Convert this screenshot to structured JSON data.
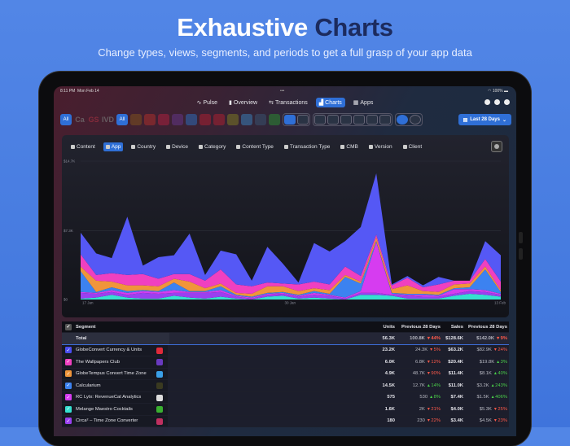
{
  "hero": {
    "title_a": "Exhaustive",
    "title_b": "Charts",
    "subtitle": "Change types, views, segments, and periods to get a full grasp of your app data"
  },
  "status": {
    "time": "8:11 PM",
    "date": "Mon Feb 14",
    "battery": "100%"
  },
  "nav": [
    {
      "label": "Pulse",
      "icon": "pulse-icon"
    },
    {
      "label": "Overview",
      "icon": "bar-chart-icon"
    },
    {
      "label": "Transactions",
      "icon": "transactions-icon"
    },
    {
      "label": "Charts",
      "icon": "chart-icon",
      "active": true
    },
    {
      "label": "Apps",
      "icon": "grid-icon"
    }
  ],
  "toolbar": {
    "all1": "All",
    "stores": [
      "Ca",
      "GS",
      "IVD"
    ],
    "all2": "All",
    "date_range": "Last 28 Days",
    "app_icon_colors": [
      "#8a5a1a",
      "#c0302a",
      "#c02040",
      "#6a3a9a",
      "#2a7ad0",
      "#c02030",
      "#c02030",
      "#8a8a20",
      "#3a90d0",
      "#3a5a7a",
      "#2aa030"
    ]
  },
  "segments": [
    {
      "label": "Content"
    },
    {
      "label": "App",
      "active": true
    },
    {
      "label": "Country"
    },
    {
      "label": "Device"
    },
    {
      "label": "Category"
    },
    {
      "label": "Content Type"
    },
    {
      "label": "Transaction Type"
    },
    {
      "label": "CMB"
    },
    {
      "label": "Version"
    },
    {
      "label": "Client"
    }
  ],
  "chart_data": {
    "type": "area",
    "stacked": true,
    "grid": true,
    "x": [
      "17 Jan",
      "18 Jan",
      "19 Jan",
      "20 Jan",
      "21 Jan",
      "22 Jan",
      "23 Jan",
      "24 Jan",
      "25 Jan",
      "26 Jan",
      "27 Jan",
      "28 Jan",
      "29 Jan",
      "30 Jan",
      "31 Jan",
      "1 Feb",
      "2 Feb",
      "3 Feb",
      "4 Feb",
      "5 Feb",
      "6 Feb",
      "7 Feb",
      "8 Feb",
      "9 Feb",
      "10 Feb",
      "11 Feb",
      "12 Feb",
      "13 Feb"
    ],
    "x_tick_labels": [
      "17 Jan",
      "30 Jan",
      "13 Feb"
    ],
    "y_tick_labels": [
      "$0",
      "$7.3K",
      "$14.7K"
    ],
    "ylim": [
      0,
      14.7
    ],
    "y_unit": "$K",
    "series": [
      {
        "name": "Melange Maestro Cocktails",
        "color": "#35e0d0",
        "values": [
          0.1,
          0.2,
          0.5,
          0.2,
          0.1,
          0.1,
          0.4,
          0.2,
          0.1,
          0.3,
          0.1,
          0,
          0.3,
          0.4,
          0.1,
          0.2,
          0.1,
          0,
          0.5,
          0.5,
          0.4,
          0.1,
          0.1,
          0.1,
          0.4,
          0.6,
          0.5,
          0.3
        ]
      },
      {
        "name": "Circa² – Time Zone Converter",
        "color": "#9a40f0",
        "values": [
          0.6,
          0.4,
          0.3,
          0.3,
          0.6,
          0.5,
          0.3,
          0.5,
          0.6,
          0.5,
          0.2,
          0.1,
          0.2,
          0.2,
          0.2,
          0.3,
          0.3,
          0.1,
          0.2,
          0.2,
          0.1,
          0.3,
          0.2,
          0.2,
          0.2,
          0.3,
          0.3,
          0.2
        ]
      },
      {
        "name": "RC Lytx: RevenueCat Analytics",
        "color": "#d63cf0",
        "values": [
          0.1,
          0.1,
          0.2,
          0.2,
          0.2,
          0.2,
          0.3,
          0.1,
          0.1,
          0.2,
          0.1,
          0.1,
          0.1,
          0.1,
          0.1,
          0.2,
          0.1,
          0.1,
          0.2,
          5.4,
          0.1,
          0.1,
          0.2,
          0.1,
          0.5,
          0.2,
          0.2,
          0.1
        ]
      },
      {
        "name": "Calcularium",
        "color": "#3c82f0",
        "values": [
          2.2,
          0.1,
          0.3,
          0.2,
          0.1,
          0.1,
          0.8,
          0.1,
          0.1,
          0.4,
          0.1,
          0.1,
          0.1,
          0.1,
          0.1,
          0.2,
          0.1,
          2.2,
          0.8,
          0.1,
          0.1,
          0.1,
          0.1,
          0.1,
          0.1,
          0.2,
          2.2,
          0.2
        ]
      },
      {
        "name": "GlobeTempus Convert Time Zone",
        "color": "#f0953a",
        "values": [
          0.5,
          1.2,
          0.6,
          0.6,
          0.5,
          0.5,
          0.4,
          1.0,
          0.3,
          0.3,
          0.2,
          0.3,
          0.7,
          0.6,
          0.4,
          0.3,
          0.4,
          0.2,
          0.2,
          0.4,
          0.4,
          0.9,
          0.3,
          0.3,
          0.4,
          0.4,
          0.3,
          0.2
        ]
      },
      {
        "name": "The Wallpapers Club",
        "color": "#f040c0",
        "values": [
          1.3,
          0.6,
          0.9,
          1.1,
          1.2,
          0.8,
          0.5,
          0.8,
          0.8,
          1.5,
          0.9,
          0.8,
          0.4,
          0.3,
          0.7,
          0.7,
          0.6,
          0.9,
          0.6,
          0.3,
          0.4,
          0.8,
          0.4,
          0.8,
          0.4,
          0.3,
          0.8,
          0.9
        ]
      },
      {
        "name": "GlobeConvert Currency & Units",
        "color": "#5558f5",
        "values": [
          2.3,
          2.3,
          1.6,
          6.2,
          0.9,
          2.3,
          2.0,
          4.3,
          0.6,
          2.0,
          3.2,
          0.6,
          3.8,
          2.1,
          0.2,
          4.1,
          3.5,
          2.7,
          5.2,
          6.5,
          0.1,
          0.2,
          0.2,
          0.8,
          0,
          0,
          1.9,
          2.8
        ]
      }
    ]
  },
  "table": {
    "headers": {
      "segment": "Segment",
      "units": "Units",
      "prev_units": "Previous 28 Days",
      "sales": "Sales",
      "prev_sales": "Previous 28 Days"
    },
    "total": {
      "name": "Total",
      "units": "56.3K",
      "prev_units": "100.8K",
      "units_change": "▾ 44%",
      "sales": "$128.6K",
      "prev_sales": "$142.0K",
      "sales_change": "▾ 9%"
    },
    "rows": [
      {
        "name": "GlobeConvert Currency & Units",
        "color": "#4a4df0",
        "icon_color": "#e02a3a",
        "units": "23.2K",
        "prev_units": "24.3K",
        "units_change": "▾ 5%",
        "units_dir": "down",
        "sales": "$63.2K",
        "prev_sales": "$82.9K",
        "sales_change": "▾ 24%",
        "sales_dir": "down"
      },
      {
        "name": "The Wallpapers Club",
        "color": "#f040c0",
        "icon_color": "#6a3ac0",
        "units": "6.0K",
        "prev_units": "6.8K",
        "units_change": "▾ 12%",
        "units_dir": "down",
        "sales": "$20.4K",
        "prev_sales": "$19.8K",
        "sales_change": "▴ 3%",
        "sales_dir": "up"
      },
      {
        "name": "GlobeTempus Convert Time Zone",
        "color": "#f0953a",
        "icon_color": "#3aa0e8",
        "units": "4.9K",
        "prev_units": "48.7K",
        "units_change": "▾ 90%",
        "units_dir": "down",
        "sales": "$11.4K",
        "prev_sales": "$8.1K",
        "sales_change": "▴ 40%",
        "sales_dir": "up"
      },
      {
        "name": "Calcularium",
        "color": "#3c82f0",
        "icon_color": "#3a3a20",
        "units": "14.5K",
        "prev_units": "12.7K",
        "units_change": "▴ 14%",
        "units_dir": "up",
        "sales": "$11.0K",
        "prev_sales": "$3.2K",
        "sales_change": "▴ 243%",
        "sales_dir": "up"
      },
      {
        "name": "RC Lytx: RevenueCat Analytics",
        "color": "#d63cf0",
        "icon_color": "#dddddd",
        "units": "575",
        "prev_units": "530",
        "units_change": "▴ 8%",
        "units_dir": "up",
        "sales": "$7.4K",
        "prev_sales": "$1.5K",
        "sales_change": "▴ 406%",
        "sales_dir": "up"
      },
      {
        "name": "Melange Maestro Cocktails",
        "color": "#35e0d0",
        "icon_color": "#3ab030",
        "units": "1.6K",
        "prev_units": "2K",
        "units_change": "▾ 21%",
        "units_dir": "down",
        "sales": "$4.0K",
        "prev_sales": "$5.3K",
        "sales_change": "▾ 25%",
        "sales_dir": "down"
      },
      {
        "name": "Circa² – Time Zone Converter",
        "color": "#9a40f0",
        "icon_color": "#c03060",
        "units": "180",
        "prev_units": "230",
        "units_change": "▾ 22%",
        "units_dir": "down",
        "sales": "$3.4K",
        "prev_sales": "$4.5K",
        "sales_change": "▾ 23%",
        "sales_dir": "down"
      }
    ]
  }
}
